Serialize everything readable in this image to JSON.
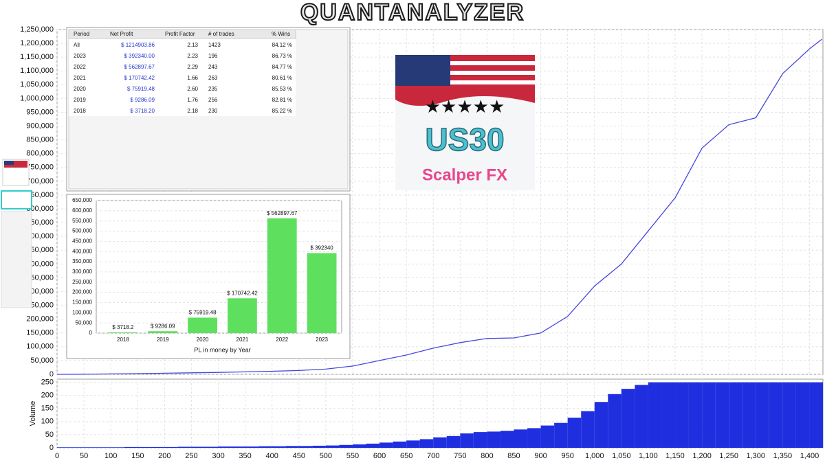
{
  "header": {
    "title": "QUANTANALYZER"
  },
  "logo": {
    "title": "US30",
    "subtitle": "Scalper FX"
  },
  "table": {
    "columns": [
      "Period",
      "Net Profit",
      "Profit Factor",
      "# of trades",
      "% Wins"
    ],
    "rows": [
      [
        "All",
        "$ 1214903.86",
        "2.13",
        "1423",
        "84.12 %"
      ],
      [
        "2023",
        "$ 392340.00",
        "2.23",
        "196",
        "86.73 %"
      ],
      [
        "2022",
        "$ 562897.67",
        "2.29",
        "243",
        "84.77 %"
      ],
      [
        "2021",
        "$ 170742.42",
        "1.66",
        "263",
        "80.61 %"
      ],
      [
        "2020",
        "$ 75919.48",
        "2.60",
        "235",
        "85.53 %"
      ],
      [
        "2019",
        "$ 9286.09",
        "1.76",
        "256",
        "82.81 %"
      ],
      [
        "2018",
        "$ 3718.20",
        "2.18",
        "230",
        "85.22 %"
      ]
    ]
  },
  "chart_data": [
    {
      "type": "line",
      "color": "#4646de",
      "grid": true,
      "x": [
        0,
        50,
        100,
        150,
        200,
        250,
        300,
        350,
        400,
        450,
        500,
        550,
        600,
        650,
        700,
        750,
        800,
        850,
        900,
        950,
        1000,
        1050,
        1100,
        1150,
        1200,
        1250,
        1300,
        1350,
        1400,
        1423
      ],
      "values": [
        0,
        500,
        1500,
        2500,
        4000,
        5500,
        7000,
        9000,
        11000,
        14000,
        19000,
        30000,
        50000,
        70000,
        95000,
        115000,
        130000,
        132000,
        150000,
        210000,
        320000,
        400000,
        520000,
        640000,
        820000,
        905000,
        930000,
        1090000,
        1180000,
        1214904
      ],
      "xlim": [
        0,
        1425
      ],
      "ylim": [
        0,
        1250000
      ],
      "yticks": [
        0,
        {
          "value": 50000,
          "label": "50,000"
        },
        {
          "value": 100000,
          "label": "100,000"
        },
        {
          "value": 150000,
          "label": "150,000"
        },
        {
          "value": 200000,
          "label": "200,000"
        },
        {
          "value": 250000,
          "label": "250,000"
        },
        {
          "value": 300000,
          "label": "300,000"
        },
        {
          "value": 350000,
          "label": "350,000"
        },
        {
          "value": 400000,
          "label": "400,000"
        },
        {
          "value": 450000,
          "label": "450,000"
        },
        {
          "value": 500000,
          "label": "500,000"
        },
        {
          "value": 550000,
          "label": "550,000"
        },
        {
          "value": 600000,
          "label": "600,000"
        },
        {
          "value": 650000,
          "label": "650,000"
        },
        {
          "value": 700000,
          "label": "700,000"
        },
        {
          "value": 750000,
          "label": "750,000"
        },
        {
          "value": 800000,
          "label": "800,000"
        },
        {
          "value": 850000,
          "label": "850,000"
        },
        {
          "value": 900000,
          "label": "900,000"
        },
        {
          "value": 950000,
          "label": "950,000"
        },
        {
          "value": 1000000,
          "label": "1,000,000"
        },
        {
          "value": 1050000,
          "label": "1,050,000"
        },
        {
          "value": 1100000,
          "label": "1,100,000"
        },
        {
          "value": 1150000,
          "label": "1,150,000"
        },
        {
          "value": 1200000,
          "label": "1,200,000"
        },
        {
          "value": 1250000,
          "label": "1,250,000"
        }
      ]
    },
    {
      "type": "bar",
      "ylabel": "Volume",
      "color": "#1f2fe0",
      "grid": true,
      "x": [
        0,
        25,
        50,
        75,
        100,
        125,
        150,
        175,
        200,
        225,
        250,
        275,
        300,
        325,
        350,
        375,
        400,
        425,
        450,
        475,
        500,
        525,
        550,
        575,
        600,
        625,
        650,
        675,
        700,
        725,
        750,
        775,
        800,
        825,
        850,
        875,
        900,
        925,
        950,
        975,
        1000,
        1025,
        1050,
        1075,
        1100,
        1125,
        1150,
        1175,
        1200,
        1225,
        1250,
        1275,
        1300,
        1325,
        1350,
        1375,
        1400
      ],
      "values": [
        2,
        2,
        2,
        2,
        2,
        3,
        3,
        3,
        3,
        4,
        4,
        4,
        5,
        5,
        5,
        6,
        6,
        7,
        7,
        8,
        9,
        11,
        13,
        16,
        20,
        24,
        28,
        33,
        40,
        45,
        55,
        60,
        62,
        65,
        70,
        75,
        85,
        95,
        115,
        140,
        175,
        205,
        225,
        240,
        250,
        250,
        250,
        250,
        250,
        250,
        250,
        250,
        250,
        250,
        250,
        250,
        250
      ],
      "xlim": [
        0,
        1425
      ],
      "ylim": [
        0,
        262
      ],
      "xticks": [
        0,
        50,
        100,
        150,
        200,
        250,
        300,
        350,
        400,
        450,
        500,
        550,
        600,
        650,
        700,
        750,
        800,
        850,
        900,
        950,
        {
          "value": 1000,
          "label": "1,000"
        },
        {
          "value": 1050,
          "label": "1,050"
        },
        {
          "value": 1100,
          "label": "1,100"
        },
        {
          "value": 1150,
          "label": "1,150"
        },
        {
          "value": 1200,
          "label": "1,200"
        },
        {
          "value": 1250,
          "label": "1,250"
        },
        {
          "value": 1300,
          "label": "1,300"
        },
        {
          "value": 1350,
          "label": "1,350"
        },
        {
          "value": 1400,
          "label": "1,400"
        }
      ],
      "yticks": [
        0,
        50,
        100,
        150,
        200,
        250
      ]
    },
    {
      "type": "bar",
      "xlabel": "PL in money by Year",
      "color": "#5ee05e",
      "grid": true,
      "categories": [
        "2018",
        "2019",
        "2020",
        "2021",
        "2022",
        "2023"
      ],
      "values": [
        3718.2,
        9286.09,
        75919.48,
        170742.42,
        562897.67,
        392340
      ],
      "value_labels": [
        "$ 3718.2",
        "$ 9286.09",
        "$ 75919.48",
        "$ 170742.42",
        "$ 562897.67",
        "$ 392340"
      ],
      "ylim": [
        0,
        650000
      ],
      "yticks": [
        0,
        {
          "value": 50000,
          "label": "50,000"
        },
        {
          "value": 100000,
          "label": "100,000"
        },
        {
          "value": 150000,
          "label": "150,000"
        },
        {
          "value": 200000,
          "label": "200,000"
        },
        {
          "value": 250000,
          "label": "250,000"
        },
        {
          "value": 300000,
          "label": "300,000"
        },
        {
          "value": 350000,
          "label": "350,000"
        },
        {
          "value": 400000,
          "label": "400,000"
        },
        {
          "value": 450000,
          "label": "450,000"
        },
        {
          "value": 500000,
          "label": "500,000"
        },
        {
          "value": 550000,
          "label": "550,000"
        },
        {
          "value": 600000,
          "label": "600,000"
        },
        {
          "value": 650000,
          "label": "650,000"
        }
      ]
    }
  ]
}
